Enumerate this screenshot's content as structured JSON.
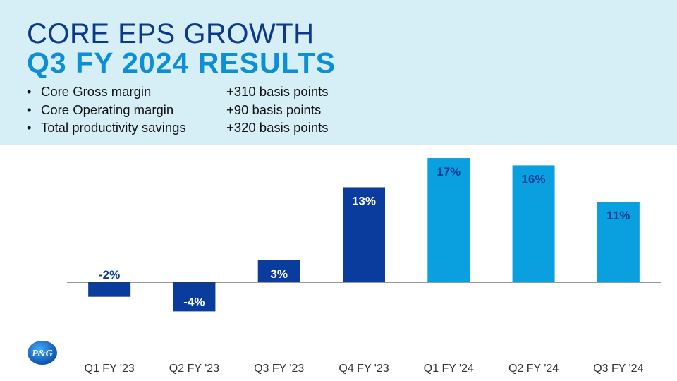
{
  "header": {
    "title_line1": "CORE EPS GROWTH",
    "title_line2": "Q3 FY 2024 RESULTS",
    "bullets": [
      {
        "label": "Core Gross margin",
        "value": "+310 basis points"
      },
      {
        "label": "Core Operating margin",
        "value": "+90 basis points"
      },
      {
        "label": "Total productivity savings",
        "value": "+320 basis points"
      }
    ]
  },
  "logo": {
    "text": "P&G",
    "icon": "pg-logo-icon"
  },
  "colors": {
    "band": "#d6eef5",
    "title_dark": "#0b3a8c",
    "title_light": "#0b8fd9",
    "bar_fy23": "#0a3c9e",
    "bar_fy24": "#0aa0e0",
    "axis": "#333333"
  },
  "chart_data": {
    "type": "bar",
    "categories": [
      "Q1 FY '23",
      "Q2 FY '23",
      "Q3 FY '23",
      "Q4 FY '23",
      "Q1 FY '24",
      "Q2 FY '24",
      "Q3 FY '24"
    ],
    "values": [
      -2,
      -4,
      3,
      13,
      17,
      16,
      11
    ],
    "data_labels": [
      "-2%",
      "-4%",
      "3%",
      "13%",
      "17%",
      "16%",
      "11%"
    ],
    "bar_colors": [
      "#0a3c9e",
      "#0a3c9e",
      "#0a3c9e",
      "#0a3c9e",
      "#0aa0e0",
      "#0aa0e0",
      "#0aa0e0"
    ],
    "label_colors": [
      "#0a3c9e",
      "#ffffff",
      "#ffffff",
      "#ffffff",
      "#0a3c9e",
      "#0a3c9e",
      "#0a3c9e"
    ],
    "title": "",
    "xlabel": "",
    "ylabel": "",
    "ylim": [
      -5,
      18
    ],
    "grid": false
  }
}
